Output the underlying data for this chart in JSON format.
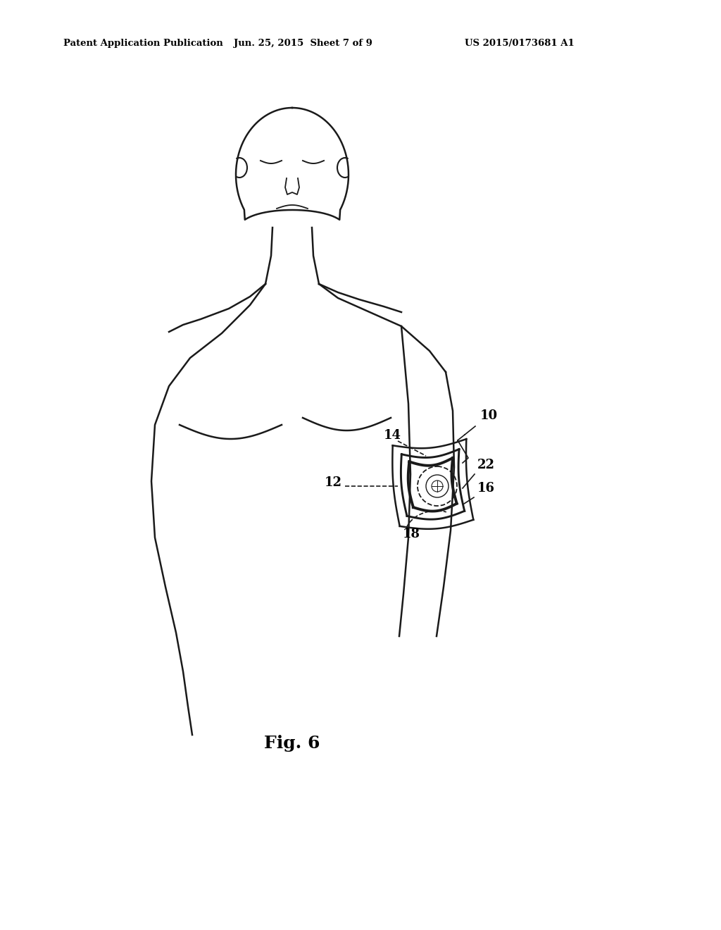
{
  "header_left": "Patent Application Publication",
  "header_center": "Jun. 25, 2015  Sheet 7 of 9",
  "header_right": "US 2015/0173681 A1",
  "fig_label": "Fig. 6",
  "bg_color": "#ffffff",
  "line_color": "#1a1a1a"
}
